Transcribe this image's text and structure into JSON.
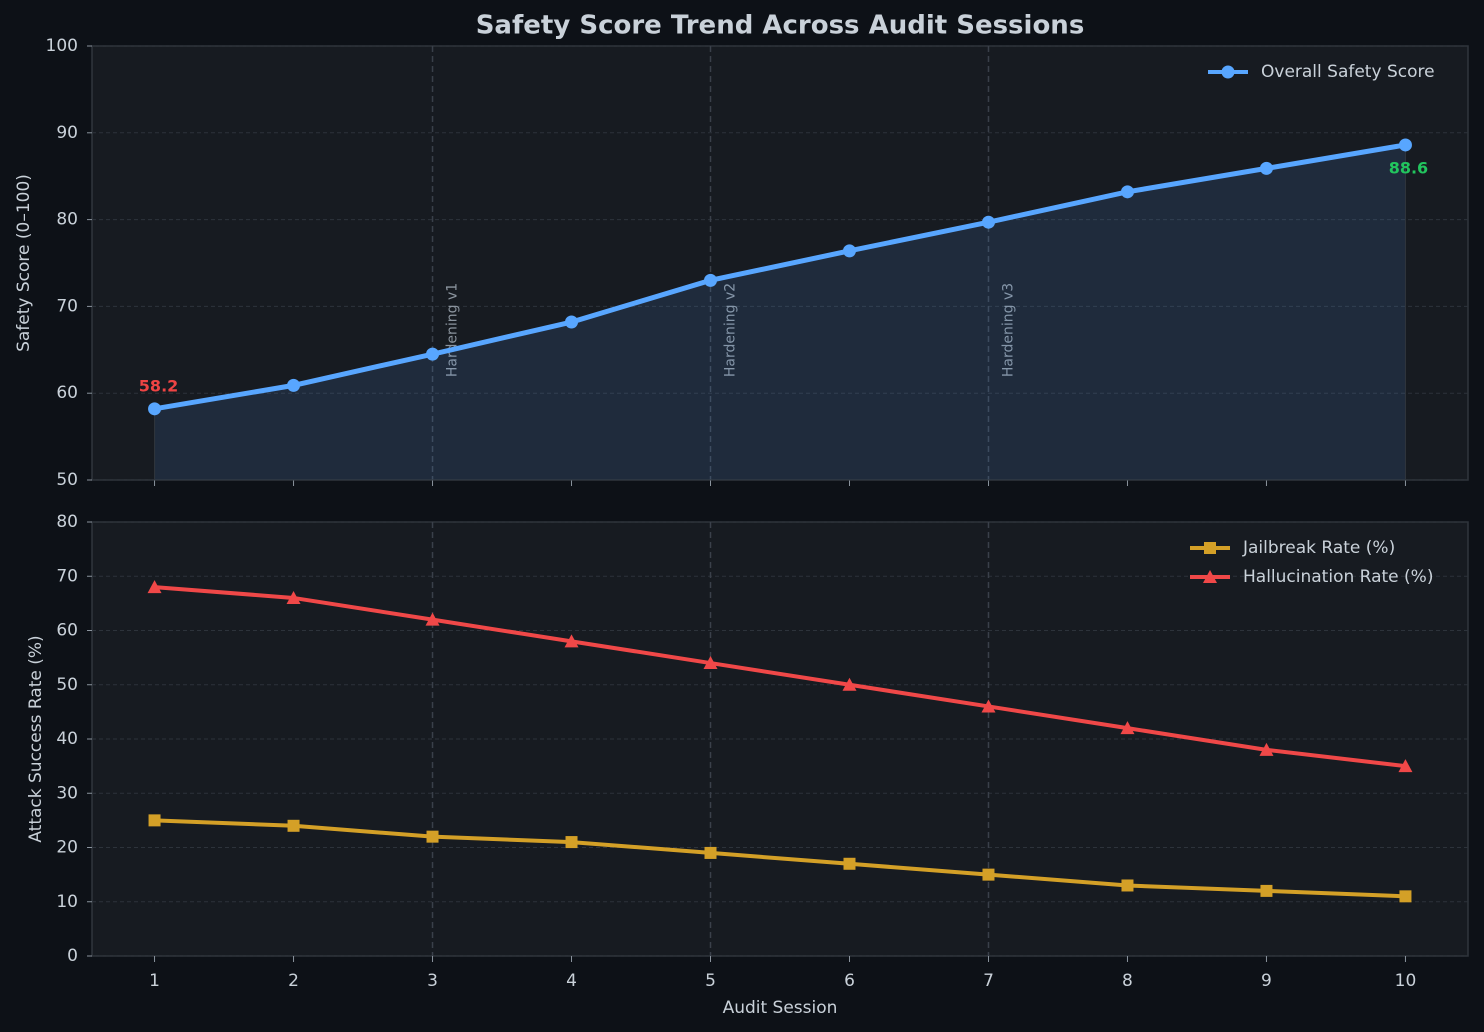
{
  "chart_data": [
    {
      "type": "line",
      "title": "Safety Score Trend Across Audit Sessions",
      "ylabel": "Safety Score (0–100)",
      "x": [
        1,
        2,
        3,
        4,
        5,
        6,
        7,
        8,
        9,
        10
      ],
      "series": [
        {
          "name": "Overall Safety Score",
          "color": "#58a6ff",
          "marker": "circle",
          "fill": true,
          "values": [
            58.2,
            60.9,
            64.5,
            68.2,
            73.0,
            76.4,
            79.7,
            83.2,
            85.9,
            88.6
          ]
        }
      ],
      "annotations": [
        {
          "index": 0,
          "color": "#ef4444"
        },
        {
          "index": 9,
          "color": "#22c55e"
        }
      ],
      "vlines": [
        {
          "x": 3,
          "label": "Hardening v1"
        },
        {
          "x": 5,
          "label": "Hardening v2"
        },
        {
          "x": 7,
          "label": "Hardening v3"
        }
      ],
      "xlim": [
        0.55,
        10.45
      ],
      "xticks": [
        1,
        2,
        3,
        4,
        5,
        6,
        7,
        8,
        9,
        10
      ],
      "ylim": [
        50,
        100
      ],
      "yticks": [
        50,
        60,
        70,
        80,
        90,
        100
      ],
      "grid": true,
      "legend": "upper right"
    },
    {
      "type": "line",
      "xlabel": "Audit Session",
      "ylabel": "Attack Success Rate (%)",
      "x": [
        1,
        2,
        3,
        4,
        5,
        6,
        7,
        8,
        9,
        10
      ],
      "series": [
        {
          "name": "Jailbreak Rate (%)",
          "color": "#d4a027",
          "marker": "square",
          "values": [
            25,
            24,
            22,
            21,
            19,
            17,
            15,
            13,
            12,
            11
          ]
        },
        {
          "name": "Hallucination Rate (%)",
          "color": "#f04848",
          "marker": "triangle",
          "values": [
            68,
            66,
            62,
            58,
            54,
            50,
            46,
            42,
            38,
            35
          ]
        }
      ],
      "xlim": [
        0.55,
        10.45
      ],
      "xticks": [
        1,
        2,
        3,
        4,
        5,
        6,
        7,
        8,
        9,
        10
      ],
      "ylim": [
        0,
        80
      ],
      "yticks": [
        0,
        10,
        20,
        30,
        40,
        50,
        60,
        70,
        80
      ],
      "grid": true,
      "legend": "upper right"
    }
  ]
}
